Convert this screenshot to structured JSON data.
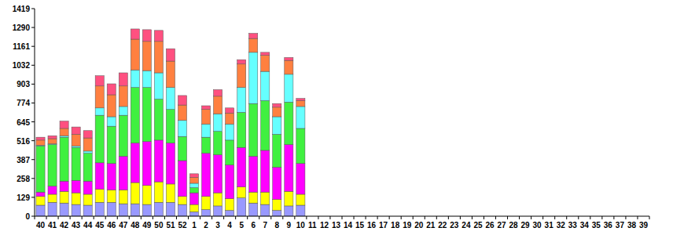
{
  "chart_data": {
    "type": "bar",
    "stacked": true,
    "categories": [
      "40",
      "41",
      "42",
      "43",
      "44",
      "45",
      "46",
      "47",
      "48",
      "49",
      "50",
      "51",
      "52",
      "1",
      "2",
      "3",
      "4",
      "5",
      "6",
      "7",
      "8",
      "9",
      "10",
      "11",
      "12",
      "13",
      "14",
      "15",
      "16",
      "17",
      "18",
      "19",
      "20",
      "21",
      "22",
      "23",
      "24",
      "25",
      "26",
      "27",
      "28",
      "29",
      "30",
      "31",
      "32",
      "33",
      "34",
      "35",
      "36",
      "37",
      "38",
      "39"
    ],
    "ylim": [
      0,
      1419
    ],
    "yticks": [
      0,
      129,
      258,
      387,
      516,
      645,
      774,
      903,
      1032,
      1161,
      1290,
      1419
    ],
    "series": [
      {
        "color": "#9999ff",
        "values": [
          75,
          95,
          90,
          80,
          75,
          95,
          95,
          85,
          85,
          80,
          95,
          95,
          80,
          30,
          45,
          70,
          40,
          125,
          90,
          80,
          40,
          70,
          75,
          null,
          null,
          null,
          null,
          null,
          null,
          null,
          null,
          null,
          null,
          null,
          null,
          null,
          null,
          null,
          null,
          null,
          null,
          null,
          null,
          null,
          null,
          null,
          null,
          null,
          null,
          null,
          null,
          null
        ]
      },
      {
        "color": "#ffff00",
        "values": [
          60,
          55,
          80,
          80,
          75,
          90,
          85,
          95,
          145,
          130,
          140,
          125,
          55,
          50,
          90,
          90,
          80,
          75,
          75,
          85,
          75,
          100,
          75,
          null,
          null,
          null,
          null,
          null,
          null,
          null,
          null,
          null,
          null,
          null,
          null,
          null,
          null,
          null,
          null,
          null,
          null,
          null,
          null,
          null,
          null,
          null,
          null,
          null,
          null,
          null,
          null,
          null
        ]
      },
      {
        "color": "#ff00ff",
        "values": [
          30,
          55,
          70,
          85,
          90,
          180,
          180,
          230,
          270,
          300,
          285,
          280,
          245,
          80,
          295,
          260,
          230,
          270,
          245,
          285,
          220,
          320,
          210,
          null,
          null,
          null,
          null,
          null,
          null,
          null,
          null,
          null,
          null,
          null,
          null,
          null,
          null,
          null,
          null,
          null,
          null,
          null,
          null,
          null,
          null,
          null,
          null,
          null,
          null,
          null,
          null,
          null
        ]
      },
      {
        "color": "#40f040",
        "values": [
          315,
          285,
          300,
          225,
          190,
          325,
          255,
          280,
          380,
          370,
          280,
          230,
          165,
          35,
          110,
          160,
          170,
          240,
          360,
          340,
          225,
          290,
          240,
          null,
          null,
          null,
          null,
          null,
          null,
          null,
          null,
          null,
          null,
          null,
          null,
          null,
          null,
          null,
          null,
          null,
          null,
          null,
          null,
          null,
          null,
          null,
          null,
          null,
          null,
          null,
          null,
          null
        ]
      },
      {
        "color": "#66ffff",
        "values": [
          5,
          5,
          10,
          10,
          15,
          50,
          65,
          60,
          120,
          115,
          180,
          150,
          110,
          30,
          90,
          120,
          110,
          170,
          350,
          200,
          120,
          190,
          150,
          null,
          null,
          null,
          null,
          null,
          null,
          null,
          null,
          null,
          null,
          null,
          null,
          null,
          null,
          null,
          null,
          null,
          null,
          null,
          null,
          null,
          null,
          null,
          null,
          null,
          null,
          null,
          null,
          null
        ]
      },
      {
        "color": "#ff8040",
        "values": [
          35,
          35,
          50,
          80,
          90,
          150,
          150,
          140,
          210,
          200,
          215,
          180,
          105,
          40,
          100,
          120,
          75,
          160,
          95,
          110,
          65,
          95,
          40,
          null,
          null,
          null,
          null,
          null,
          null,
          null,
          null,
          null,
          null,
          null,
          null,
          null,
          null,
          null,
          null,
          null,
          null,
          null,
          null,
          null,
          null,
          null,
          null,
          null,
          null,
          null,
          null,
          null
        ]
      },
      {
        "color": "#ff5080",
        "values": [
          20,
          20,
          50,
          50,
          50,
          70,
          75,
          90,
          70,
          80,
          75,
          85,
          65,
          25,
          25,
          45,
          35,
          30,
          35,
          20,
          25,
          20,
          15,
          null,
          null,
          null,
          null,
          null,
          null,
          null,
          null,
          null,
          null,
          null,
          null,
          null,
          null,
          null,
          null,
          null,
          null,
          null,
          null,
          null,
          null,
          null,
          null,
          null,
          null,
          null,
          null,
          null
        ]
      }
    ]
  }
}
